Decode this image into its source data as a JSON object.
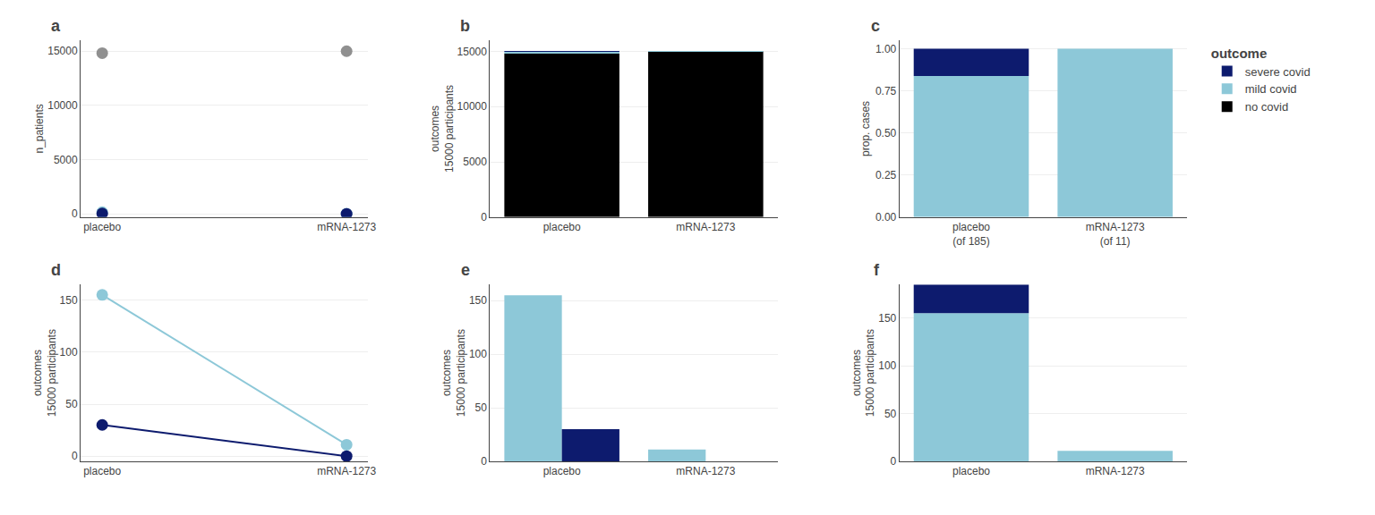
{
  "chart_data": [
    {
      "type": "scatter",
      "title": "a",
      "marker": "circle",
      "categories": [
        "placebo",
        "mRNA-1273"
      ],
      "series": [
        {
          "name": "no covid",
          "color": "#909090",
          "values": [
            14815,
            14989
          ]
        },
        {
          "name": "mild covid",
          "color": "#8dc8d8",
          "values": [
            155,
            11
          ]
        },
        {
          "name": "severe covid",
          "color": "#0d1b6e",
          "values": [
            30,
            0
          ]
        }
      ],
      "ylabel": "n_patients",
      "ylim": [
        -300,
        16000
      ],
      "yticks": [
        0,
        5000,
        10000,
        15000
      ],
      "grid": true
    },
    {
      "type": "bar",
      "title": "b",
      "stacked": true,
      "legend": "upper right",
      "legend_title": "outcome",
      "categories": [
        "placebo",
        "mRNA-1273"
      ],
      "series": [
        {
          "name": "no covid",
          "color": "#000000",
          "values": [
            14815,
            14989
          ]
        },
        {
          "name": "mild covid",
          "color": "#8dc8d8",
          "values": [
            155,
            11
          ]
        },
        {
          "name": "severe covid",
          "color": "#0d1b6e",
          "values": [
            30,
            0
          ]
        }
      ],
      "ylabel": "outcomes\n15000 participants",
      "ylim": [
        0,
        16000
      ],
      "yticks": [
        0,
        5000,
        10000,
        15000
      ],
      "grid": true
    },
    {
      "type": "bar",
      "title": "c",
      "stacked": true,
      "categories": [
        "placebo\n(of 185)",
        "mRNA-1273\n(of 11)"
      ],
      "series": [
        {
          "name": "mild covid",
          "color": "#8dc8d8",
          "values": [
            0.8378378378378378,
            1.0
          ]
        },
        {
          "name": "severe covid",
          "color": "#0d1b6e",
          "values": [
            0.16216216216216217,
            0.0
          ]
        }
      ],
      "ylabel": "prop. cases",
      "ylim": [
        0,
        1.05
      ],
      "yticks": [
        {
          "value": 0,
          "label": "0.00"
        },
        {
          "value": 0.25,
          "label": "0.25"
        },
        {
          "value": 0.5,
          "label": "0.50"
        },
        {
          "value": 0.75,
          "label": "0.75"
        },
        {
          "value": 1,
          "label": "1.00"
        }
      ],
      "grid": true
    },
    {
      "type": "line",
      "title": "d",
      "marker": "circle",
      "categories": [
        "placebo",
        "mRNA-1273"
      ],
      "series": [
        {
          "name": "mild covid",
          "color": "#8dc8d8",
          "values": [
            155,
            11
          ]
        },
        {
          "name": "severe covid",
          "color": "#0d1b6e",
          "values": [
            30,
            0
          ]
        }
      ],
      "ylabel": "outcomes\n15000 participants",
      "ylim": [
        -5,
        165
      ],
      "yticks": [
        0,
        50,
        100,
        150
      ],
      "grid": true
    },
    {
      "type": "bar",
      "title": "e",
      "categories": [
        "placebo",
        "mRNA-1273"
      ],
      "series": [
        {
          "name": "mild covid",
          "color": "#8dc8d8",
          "values": [
            155,
            11
          ]
        },
        {
          "name": "severe covid",
          "color": "#0d1b6e",
          "values": [
            30,
            0
          ]
        }
      ],
      "ylabel": "outcomes\n15000 participants",
      "ylim": [
        0,
        165
      ],
      "yticks": [
        0,
        50,
        100,
        150
      ],
      "grid": true
    },
    {
      "type": "bar",
      "title": "f",
      "stacked": true,
      "categories": [
        "placebo",
        "mRNA-1273"
      ],
      "series": [
        {
          "name": "mild covid",
          "color": "#8dc8d8",
          "values": [
            155,
            11
          ]
        },
        {
          "name": "severe covid",
          "color": "#0d1b6e",
          "values": [
            30,
            0
          ]
        }
      ],
      "ylabel": "outcomes\n15000 participants",
      "ylim": [
        0,
        185
      ],
      "yticks": [
        0,
        50,
        100,
        150
      ],
      "grid": true
    }
  ]
}
